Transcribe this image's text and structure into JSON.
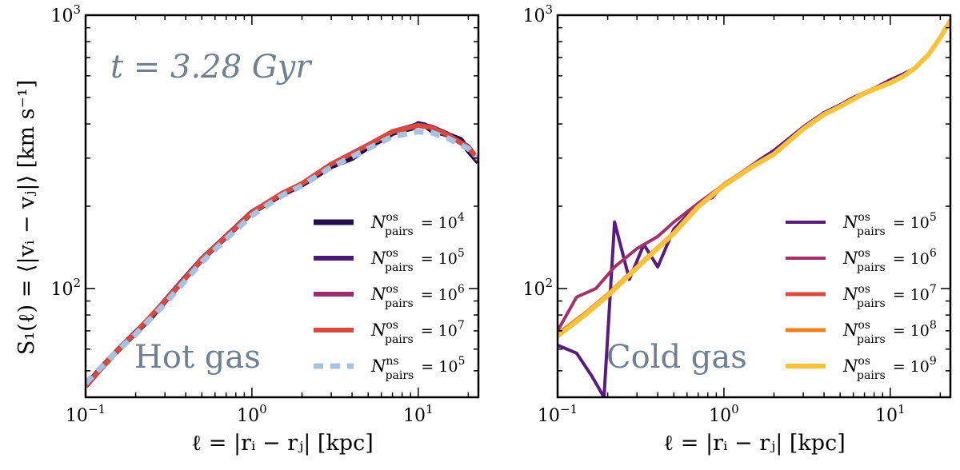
{
  "figure": {
    "ylabel": "S₁(ℓ) = ⟨|vᵢ − vⱼ|⟩ [km s⁻¹]",
    "xlabel": "ℓ = |rᵢ − rⱼ| [kpc]"
  },
  "chart_data": [
    {
      "type": "line",
      "panel": "left",
      "time_annotation": "t = 3.28 Gyr",
      "label": "Hot gas",
      "xscale": "log",
      "yscale": "log",
      "xlim": [
        0.1,
        23
      ],
      "ylim": [
        40,
        1000
      ],
      "xticks": [
        {
          "v": 0.1,
          "base": "10",
          "exp": "−1"
        },
        {
          "v": 1,
          "base": "10",
          "exp": "0"
        },
        {
          "v": 10,
          "base": "10",
          "exp": "1"
        }
      ],
      "yticks": [
        {
          "v": 100,
          "base": "10",
          "exp": "2"
        },
        {
          "v": 1000,
          "base": "10",
          "exp": "3"
        }
      ],
      "xlabel": "ℓ = |rᵢ − rⱼ| [kpc]",
      "ylabel": "S₁(ℓ) = ⟨|vᵢ − vⱼ|⟩ [km s⁻¹]",
      "series": [
        {
          "name": "N_pairs^os = 10^4",
          "legend_sup": "os",
          "legend_exp": "4",
          "color": "#1f0f4d",
          "dash": "none",
          "width": 7,
          "x": [
            0.1,
            0.12,
            0.15,
            0.2,
            0.25,
            0.3,
            0.4,
            0.5,
            0.7,
            1,
            1.5,
            2,
            3,
            4,
            5,
            6,
            7,
            8,
            9,
            10,
            11,
            12,
            14,
            16,
            18,
            20,
            23
          ],
          "y": [
            44,
            50,
            58,
            69,
            79,
            90,
            110,
            128,
            155,
            190,
            220,
            240,
            280,
            300,
            330,
            350,
            370,
            380,
            385,
            400,
            395,
            380,
            370,
            360,
            350,
            320,
            290
          ]
        },
        {
          "name": "N_pairs^os = 10^5",
          "legend_sup": "os",
          "legend_exp": "5",
          "color": "#4a1a7a",
          "dash": "none",
          "width": 6,
          "x": [
            0.1,
            0.15,
            0.2,
            0.3,
            0.5,
            0.7,
            1,
            1.5,
            2,
            3,
            5,
            7,
            10,
            12,
            15,
            20,
            23
          ],
          "y": [
            44,
            58,
            69,
            90,
            128,
            155,
            190,
            222,
            242,
            285,
            335,
            375,
            398,
            390,
            368,
            330,
            295
          ]
        },
        {
          "name": "N_pairs^os = 10^6",
          "legend_sup": "os",
          "legend_exp": "6",
          "color": "#9b2d6e",
          "dash": "none",
          "width": 6,
          "x": [
            0.1,
            0.15,
            0.2,
            0.3,
            0.5,
            0.7,
            1,
            1.5,
            2,
            3,
            5,
            7,
            10,
            12,
            15,
            20,
            23
          ],
          "y": [
            44,
            58,
            69,
            90,
            128,
            155,
            190,
            222,
            242,
            285,
            335,
            375,
            395,
            388,
            365,
            328,
            295
          ]
        },
        {
          "name": "N_pairs^os = 10^7",
          "legend_sup": "os",
          "legend_exp": "7",
          "color": "#d94a3e",
          "dash": "none",
          "width": 6,
          "x": [
            0.1,
            0.15,
            0.2,
            0.3,
            0.5,
            0.7,
            1,
            1.5,
            2,
            3,
            5,
            7,
            10,
            12,
            15,
            20,
            23
          ],
          "y": [
            44,
            58,
            69,
            90,
            128,
            155,
            190,
            222,
            242,
            285,
            335,
            375,
            395,
            388,
            365,
            328,
            295
          ]
        },
        {
          "name": "N_pairs^ns = 10^5",
          "legend_sup": "ns",
          "legend_exp": "5",
          "color": "#a9c1e0",
          "dash": "12,9",
          "width": 7,
          "x": [
            0.1,
            0.15,
            0.2,
            0.3,
            0.5,
            0.7,
            1,
            1.5,
            2,
            3,
            5,
            7,
            10,
            12,
            15,
            20,
            23
          ],
          "y": [
            45,
            58,
            68,
            88,
            125,
            152,
            185,
            218,
            238,
            278,
            325,
            360,
            375,
            372,
            355,
            325,
            300
          ]
        }
      ]
    },
    {
      "type": "line",
      "panel": "right",
      "label": "Cold gas",
      "xscale": "log",
      "yscale": "log",
      "xlim": [
        0.1,
        23
      ],
      "ylim": [
        40,
        1000
      ],
      "xticks": [
        {
          "v": 0.1,
          "base": "10",
          "exp": "−1"
        },
        {
          "v": 1,
          "base": "10",
          "exp": "0"
        },
        {
          "v": 10,
          "base": "10",
          "exp": "1"
        }
      ],
      "yticks": [
        {
          "v": 100,
          "base": "10",
          "exp": "2"
        },
        {
          "v": 1000,
          "base": "10",
          "exp": "3"
        }
      ],
      "xlabel": "ℓ = |rᵢ − rⱼ| [kpc]",
      "series": [
        {
          "name": "N_pairs^os = 10^5",
          "legend_sup": "os",
          "legend_exp": "5",
          "color": "#5a1a7e",
          "dash": "none",
          "width": 4,
          "x": [
            0.1,
            0.13,
            0.16,
            0.19,
            0.22,
            0.27,
            0.33,
            0.4,
            0.5,
            0.6,
            0.7,
            0.85,
            1,
            1.3,
            1.7,
            2,
            3,
            4,
            5,
            6,
            8,
            10,
            12,
            14,
            17,
            20,
            23
          ],
          "y": [
            62,
            58,
            48,
            40,
            175,
            108,
            145,
            120,
            165,
            185,
            205,
            215,
            240,
            268,
            300,
            320,
            390,
            440,
            470,
            500,
            540,
            580,
            610,
            640,
            720,
            830,
            960
          ]
        },
        {
          "name": "N_pairs^os = 10^6",
          "legend_sup": "os",
          "legend_exp": "6",
          "color": "#a2336a",
          "dash": "none",
          "width": 4,
          "x": [
            0.1,
            0.13,
            0.17,
            0.22,
            0.3,
            0.4,
            0.5,
            0.7,
            1,
            1.5,
            2,
            3,
            4,
            5,
            7,
            10,
            12,
            14,
            17,
            20,
            23
          ],
          "y": [
            70,
            93,
            100,
            120,
            140,
            155,
            175,
            205,
            240,
            282,
            312,
            385,
            435,
            465,
            520,
            570,
            600,
            640,
            720,
            830,
            960
          ]
        },
        {
          "name": "N_pairs^os = 10^7",
          "legend_sup": "os",
          "legend_exp": "7",
          "color": "#dc4b3f",
          "dash": "none",
          "width": 5,
          "x": [
            0.1,
            0.15,
            0.2,
            0.3,
            0.5,
            0.7,
            1,
            1.5,
            2,
            3,
            4,
            5,
            7,
            10,
            12,
            14,
            17,
            20,
            23
          ],
          "y": [
            68,
            82,
            95,
            120,
            160,
            200,
            240,
            282,
            312,
            385,
            435,
            465,
            520,
            568,
            600,
            640,
            720,
            830,
            960
          ]
        },
        {
          "name": "N_pairs^os = 10^8",
          "legend_sup": "os",
          "legend_exp": "8",
          "color": "#f07d1e",
          "dash": "none",
          "width": 5,
          "x": [
            0.1,
            0.15,
            0.2,
            0.3,
            0.5,
            0.7,
            1,
            1.5,
            2,
            3,
            4,
            5,
            7,
            10,
            12,
            14,
            17,
            20,
            23
          ],
          "y": [
            68,
            82,
            95,
            120,
            160,
            200,
            240,
            282,
            312,
            385,
            435,
            465,
            520,
            568,
            600,
            640,
            720,
            830,
            960
          ]
        },
        {
          "name": "N_pairs^os = 10^9",
          "legend_sup": "os",
          "legend_exp": "9",
          "color": "#f6c33b",
          "dash": "none",
          "width": 6,
          "x": [
            0.1,
            0.15,
            0.2,
            0.3,
            0.5,
            0.7,
            1,
            1.5,
            2,
            3,
            4,
            5,
            7,
            10,
            12,
            14,
            17,
            20,
            23
          ],
          "y": [
            67,
            81,
            94,
            119,
            159,
            199,
            238,
            280,
            310,
            383,
            433,
            463,
            518,
            565,
            598,
            638,
            718,
            828,
            958
          ]
        }
      ]
    }
  ]
}
